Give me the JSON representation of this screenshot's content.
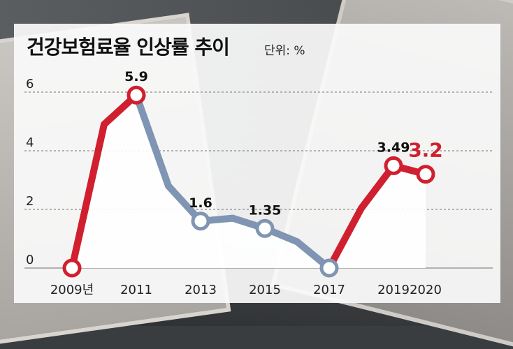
{
  "title": "건강보험료율 인상률 추이",
  "unit_label": "단위: %",
  "chart_data": {
    "type": "line",
    "title": "건강보험료율 인상률 추이",
    "unit": "단위: %",
    "x_tick_labels": [
      "2009년",
      "2011",
      "2013",
      "2015",
      "2017",
      "2019",
      "2020"
    ],
    "y_tick_labels": [
      "0",
      "2",
      "4",
      "6"
    ],
    "ylim": [
      0,
      6.4
    ],
    "grid": true,
    "x": [
      2009,
      2010,
      2011,
      2012,
      2013,
      2014,
      2015,
      2016,
      2017,
      2018,
      2019,
      2020
    ],
    "values": [
      0,
      4.9,
      5.9,
      2.8,
      1.6,
      1.7,
      1.35,
      0.9,
      0,
      2.04,
      3.49,
      3.2
    ],
    "segment_colors": [
      "red",
      "red",
      "blue",
      "blue",
      "blue",
      "blue",
      "blue",
      "blue",
      "red",
      "red",
      "red"
    ],
    "markers": [
      2009,
      2011,
      2013,
      2015,
      2017,
      2019,
      2020
    ],
    "data_labels": [
      {
        "x": 2011,
        "text": "5.9",
        "highlight": false
      },
      {
        "x": 2013,
        "text": "1.6",
        "highlight": false
      },
      {
        "x": 2015,
        "text": "1.35",
        "highlight": false
      },
      {
        "x": 2019,
        "text": "3.49",
        "highlight": false
      },
      {
        "x": 2020,
        "text": "3.2",
        "highlight": true
      }
    ],
    "colors": {
      "increase": "#d01f2e",
      "decrease": "#7f95b3",
      "highlight_label": "#d01f2e"
    }
  }
}
